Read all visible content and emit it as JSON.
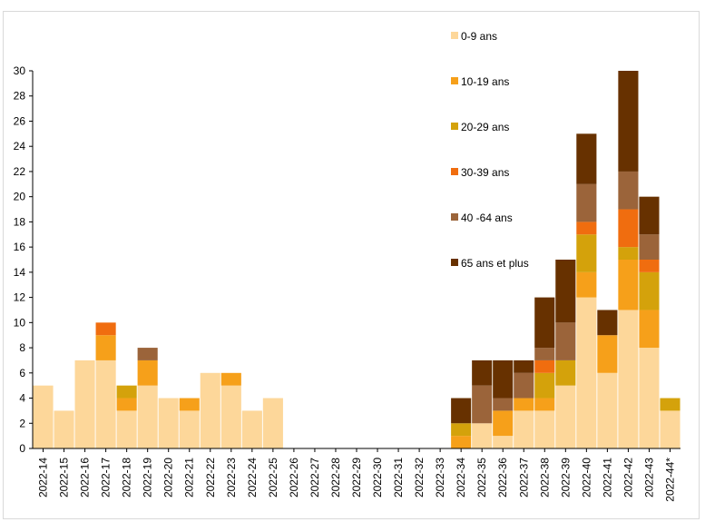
{
  "chart_data": {
    "type": "bar",
    "stacked": true,
    "categories": [
      "2022-14",
      "2022-15",
      "2022-16",
      "2022-17",
      "2022-18",
      "2022-19",
      "2022-20",
      "2022-21",
      "2022-22",
      "2022-23",
      "2022-24",
      "2022-25",
      "2022-26",
      "2022-27",
      "2022-28",
      "2022-29",
      "2022-30",
      "2022-31",
      "2022-32",
      "2022-33",
      "2022-34",
      "2022-35",
      "2022-36",
      "2022-37",
      "2022-38",
      "2022-39",
      "2022-40",
      "2022-41",
      "2022-42",
      "2022-43",
      "2022-44*"
    ],
    "series": [
      {
        "name": "0-9 ans",
        "color": "#fdd79a",
        "values": [
          5,
          3,
          7,
          7,
          3,
          5,
          4,
          3,
          6,
          5,
          3,
          4,
          0,
          0,
          0,
          0,
          0,
          0,
          0,
          0,
          0,
          2,
          1,
          3,
          3,
          5,
          12,
          6,
          11,
          8,
          3
        ]
      },
      {
        "name": "10-19 ans",
        "color": "#f6a01a",
        "values": [
          0,
          0,
          0,
          2,
          1,
          2,
          0,
          1,
          0,
          1,
          0,
          0,
          0,
          0,
          0,
          0,
          0,
          0,
          0,
          0,
          1,
          0,
          2,
          1,
          1,
          0,
          2,
          3,
          4,
          3,
          0
        ]
      },
      {
        "name": "20-29 ans",
        "color": "#d4a20b",
        "values": [
          0,
          0,
          0,
          0,
          1,
          0,
          0,
          0,
          0,
          0,
          0,
          0,
          0,
          0,
          0,
          0,
          0,
          0,
          0,
          0,
          1,
          0,
          0,
          0,
          2,
          2,
          3,
          0,
          1,
          3,
          1
        ]
      },
      {
        "name": "30-39 ans",
        "color": "#f06d0f",
        "values": [
          0,
          0,
          0,
          1,
          0,
          0,
          0,
          0,
          0,
          0,
          0,
          0,
          0,
          0,
          0,
          0,
          0,
          0,
          0,
          0,
          0,
          0,
          0,
          0,
          1,
          0,
          1,
          0,
          3,
          1,
          0
        ]
      },
      {
        "name": "40 -64 ans",
        "color": "#9b643a",
        "values": [
          0,
          0,
          0,
          0,
          0,
          1,
          0,
          0,
          0,
          0,
          0,
          0,
          0,
          0,
          0,
          0,
          0,
          0,
          0,
          0,
          0,
          3,
          1,
          2,
          1,
          3,
          3,
          0,
          3,
          2,
          0
        ]
      },
      {
        "name": "65 ans et plus",
        "color": "#673100",
        "values": [
          0,
          0,
          0,
          0,
          0,
          0,
          0,
          0,
          0,
          0,
          0,
          0,
          0,
          0,
          0,
          0,
          0,
          0,
          0,
          0,
          2,
          2,
          3,
          1,
          4,
          5,
          4,
          2,
          8,
          3,
          0
        ]
      }
    ],
    "ylim": [
      0,
      30
    ],
    "yticks": [
      0,
      2,
      4,
      6,
      8,
      10,
      12,
      14,
      16,
      18,
      20,
      22,
      24,
      26,
      28,
      30
    ],
    "legend_position": "right",
    "grid": false
  }
}
